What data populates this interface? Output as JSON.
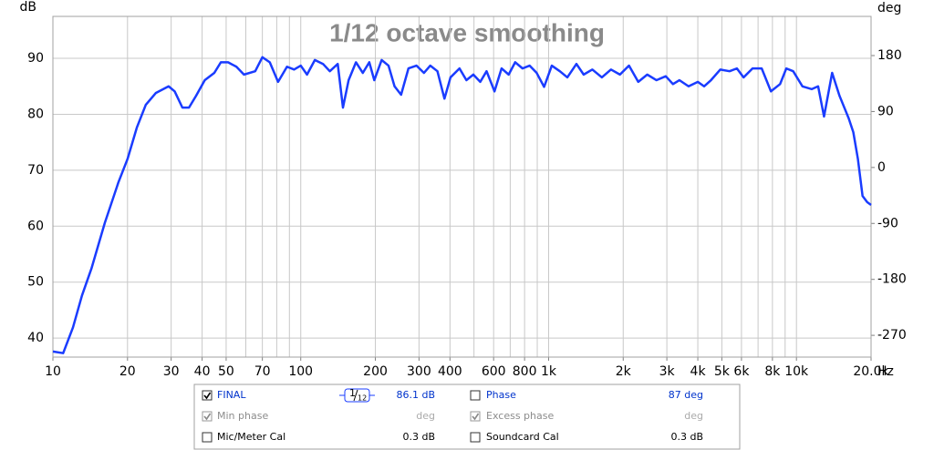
{
  "chart_data": {
    "type": "line",
    "title": "1/12 octave smoothing",
    "y_label": "dB",
    "y2_label": "deg",
    "x_label": "Hz",
    "xscale": "log",
    "xlim": [
      10,
      20000
    ],
    "ylim": [
      36.6,
      97.5
    ],
    "y2lim": [
      -305,
      243
    ],
    "yticks": [
      40,
      50,
      60,
      70,
      80,
      90
    ],
    "y2ticks": [
      -270,
      -180,
      -90,
      0,
      90,
      180
    ],
    "xticks": [
      10,
      20,
      30,
      40,
      50,
      70,
      100,
      200,
      300,
      400,
      600,
      800,
      {
        "value": 1000,
        "label": "1k"
      },
      {
        "value": 2000,
        "label": "2k"
      },
      {
        "value": 3000,
        "label": "3k"
      },
      {
        "value": 4000,
        "label": "4k"
      },
      {
        "value": 5000,
        "label": "5k"
      },
      {
        "value": 6000,
        "label": "6k"
      },
      {
        "value": 8000,
        "label": "8k"
      },
      {
        "value": 10000,
        "label": "10k"
      },
      {
        "value": 20000,
        "label": "20.0k"
      }
    ],
    "xgrid": [
      10,
      20,
      30,
      40,
      50,
      60,
      70,
      80,
      90,
      100,
      200,
      300,
      400,
      500,
      600,
      700,
      800,
      900,
      1000,
      2000,
      3000,
      4000,
      5000,
      6000,
      7000,
      8000,
      9000,
      10000,
      20000
    ],
    "grid": true,
    "x": [
      10,
      11,
      12.05,
      13.1,
      14.3,
      16.2,
      18.4,
      20,
      21.8,
      23.7,
      26,
      29.3,
      31,
      33.3,
      35.4,
      37.8,
      41,
      44.8,
      47.6,
      50.9,
      55,
      59,
      65.5,
      70,
      75,
      81,
      88,
      94,
      100,
      106,
      114,
      123,
      131,
      141,
      148,
      156,
      167,
      178,
      189,
      198,
      212,
      226,
      239,
      254,
      272,
      293,
      314,
      333,
      356,
      380,
      402,
      437,
      466,
      497,
      530,
      562,
      605,
      646,
      690,
      733,
      785,
      838,
      895,
      959,
      1030,
      1110,
      1190,
      1295,
      1385,
      1501,
      1640,
      1785,
      1940,
      2110,
      2300,
      2500,
      2725,
      2970,
      3175,
      3370,
      3670,
      4000,
      4240,
      4520,
      4930,
      5370,
      5750,
      6120,
      6650,
      7240,
      7890,
      8590,
      9100,
      9700,
      10570,
      11520,
      12230,
      12920,
      13930,
      14920,
      16240,
      16960,
      17700,
      18480,
      19290,
      20000
    ],
    "series": [
      {
        "name": "FINAL",
        "color": "#1a3cff",
        "values": [
          37.6,
          37.3,
          41.9,
          47.6,
          52.4,
          60.6,
          67.9,
          72.0,
          77.6,
          81.7,
          83.8,
          85.0,
          84.1,
          81.2,
          81.2,
          83.3,
          86.1,
          87.4,
          89.3,
          89.3,
          88.5,
          87.1,
          87.7,
          90.2,
          89.3,
          85.8,
          88.5,
          88.0,
          88.7,
          87.1,
          89.7,
          89.0,
          87.7,
          89.0,
          81.2,
          86.1,
          89.3,
          87.4,
          89.3,
          86.1,
          89.7,
          88.7,
          85.0,
          83.5,
          88.2,
          88.7,
          87.4,
          88.7,
          87.7,
          82.8,
          86.6,
          88.2,
          86.1,
          87.1,
          85.8,
          87.7,
          84.1,
          88.2,
          87.1,
          89.3,
          88.2,
          88.7,
          87.4,
          84.9,
          88.7,
          87.7,
          86.6,
          89.0,
          87.1,
          88.0,
          86.6,
          88.0,
          87.1,
          88.7,
          85.8,
          87.1,
          86.1,
          86.8,
          85.4,
          86.1,
          85.0,
          85.8,
          85.0,
          86.1,
          88.0,
          87.7,
          88.2,
          86.6,
          88.2,
          88.2,
          84.1,
          85.4,
          88.2,
          87.7,
          85.0,
          84.5,
          85.0,
          79.6,
          87.4,
          83.3,
          79.3,
          76.8,
          72.0,
          65.4,
          64.3,
          63.8
        ]
      }
    ]
  },
  "panel": {
    "smoothing": {
      "num": "1",
      "den": "12"
    },
    "rows": [
      {
        "left": {
          "checked": true,
          "enabled": true,
          "color": "#0033cc",
          "value": "86.1 dB"
        },
        "right": {
          "label": "Phase",
          "checked": false,
          "enabled": true,
          "color": "#0033cc",
          "value": "87 deg"
        }
      },
      {
        "left": {
          "label": "Min phase",
          "checked": true,
          "enabled": false,
          "color": "#8c8c8c",
          "value": "deg"
        },
        "right": {
          "label": "Excess phase",
          "checked": true,
          "enabled": false,
          "color": "#8c8c8c",
          "value": "deg"
        }
      },
      {
        "left": {
          "label": "Mic/Meter Cal",
          "checked": false,
          "enabled": true,
          "color": "#000000",
          "value": "0.3 dB"
        },
        "right": {
          "label": "Soundcard Cal",
          "checked": false,
          "enabled": true,
          "color": "#000000",
          "value": "0.3 dB"
        }
      }
    ]
  }
}
